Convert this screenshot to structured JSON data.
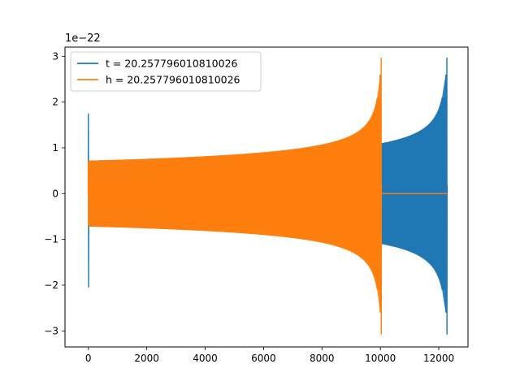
{
  "chart_data": {
    "type": "line",
    "scale_label": "1e−22",
    "x_ticks": [
      0,
      2000,
      4000,
      6000,
      8000,
      10000,
      12000
    ],
    "y_ticks": [
      -3,
      -2,
      -1,
      0,
      1,
      2,
      3
    ],
    "y_tick_labels": [
      "−3",
      "−2",
      "−1",
      "0",
      "1",
      "2",
      "3"
    ],
    "xlim": [
      -800,
      13000
    ],
    "ylim": [
      -3.35,
      3.2
    ],
    "grid": false,
    "legend_placement": "top-left",
    "series": [
      {
        "name": "t = 20.257796010810026",
        "color": "#1f77b4",
        "waveform": {
          "start_x": 0,
          "merger_x": 12280,
          "end_x": 12290,
          "initial_glitch": [
            1.75,
            -2.05
          ],
          "base_amplitude": 0.72,
          "pre_merger_amplitude": 1.0,
          "peak_max": 2.97,
          "peak_min": -3.08
        }
      },
      {
        "name": "h = 20.257796010810026",
        "color": "#ff7f0e",
        "waveform": {
          "start_x": 0,
          "merger_x": 10030,
          "end_x": 12290,
          "initial_glitch": [
            0.7,
            -0.7
          ],
          "base_amplitude": 0.72,
          "pre_merger_amplitude": 1.0,
          "peak_max": 2.97,
          "peak_min": -3.08
        }
      }
    ]
  }
}
